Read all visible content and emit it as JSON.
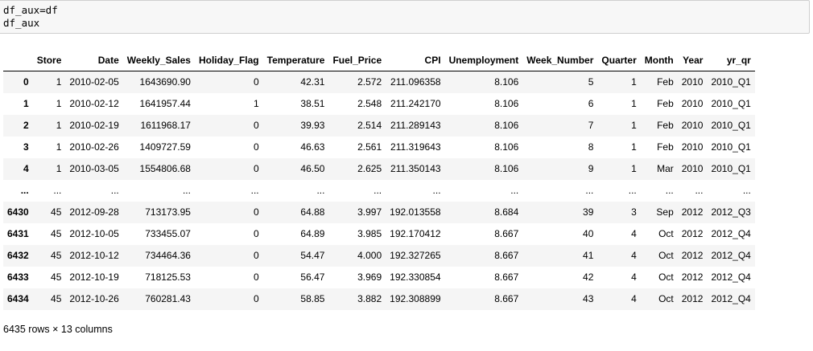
{
  "code_cell": {
    "lines": [
      "df_aux=df",
      "df_aux"
    ]
  },
  "table": {
    "columns": [
      "",
      "Store",
      "Date",
      "Weekly_Sales",
      "Holiday_Flag",
      "Temperature",
      "Fuel_Price",
      "CPI",
      "Unemployment",
      "Week_Number",
      "Quarter",
      "Month",
      "Year",
      "yr_qr"
    ],
    "rows": [
      [
        "0",
        "1",
        "2010-02-05",
        "1643690.90",
        "0",
        "42.31",
        "2.572",
        "211.096358",
        "8.106",
        "5",
        "1",
        "Feb",
        "2010",
        "2010_Q1"
      ],
      [
        "1",
        "1",
        "2010-02-12",
        "1641957.44",
        "1",
        "38.51",
        "2.548",
        "211.242170",
        "8.106",
        "6",
        "1",
        "Feb",
        "2010",
        "2010_Q1"
      ],
      [
        "2",
        "1",
        "2010-02-19",
        "1611968.17",
        "0",
        "39.93",
        "2.514",
        "211.289143",
        "8.106",
        "7",
        "1",
        "Feb",
        "2010",
        "2010_Q1"
      ],
      [
        "3",
        "1",
        "2010-02-26",
        "1409727.59",
        "0",
        "46.63",
        "2.561",
        "211.319643",
        "8.106",
        "8",
        "1",
        "Feb",
        "2010",
        "2010_Q1"
      ],
      [
        "4",
        "1",
        "2010-03-05",
        "1554806.68",
        "0",
        "46.50",
        "2.625",
        "211.350143",
        "8.106",
        "9",
        "1",
        "Mar",
        "2010",
        "2010_Q1"
      ],
      [
        "...",
        "...",
        "...",
        "...",
        "...",
        "...",
        "...",
        "...",
        "...",
        "...",
        "...",
        "...",
        "...",
        "..."
      ],
      [
        "6430",
        "45",
        "2012-09-28",
        "713173.95",
        "0",
        "64.88",
        "3.997",
        "192.013558",
        "8.684",
        "39",
        "3",
        "Sep",
        "2012",
        "2012_Q3"
      ],
      [
        "6431",
        "45",
        "2012-10-05",
        "733455.07",
        "0",
        "64.89",
        "3.985",
        "192.170412",
        "8.667",
        "40",
        "4",
        "Oct",
        "2012",
        "2012_Q4"
      ],
      [
        "6432",
        "45",
        "2012-10-12",
        "734464.36",
        "0",
        "54.47",
        "4.000",
        "192.327265",
        "8.667",
        "41",
        "4",
        "Oct",
        "2012",
        "2012_Q4"
      ],
      [
        "6433",
        "45",
        "2012-10-19",
        "718125.53",
        "0",
        "56.47",
        "3.969",
        "192.330854",
        "8.667",
        "42",
        "4",
        "Oct",
        "2012",
        "2012_Q4"
      ],
      [
        "6434",
        "45",
        "2012-10-26",
        "760281.43",
        "0",
        "58.85",
        "3.882",
        "192.308899",
        "8.667",
        "43",
        "4",
        "Oct",
        "2012",
        "2012_Q4"
      ]
    ]
  },
  "footer": {
    "shape_text": "6435 rows × 13 columns"
  },
  "colors": {
    "code_bg": "#f7f7f7",
    "code_border": "#cfcfcf",
    "stripe": "#f5f5f5"
  }
}
